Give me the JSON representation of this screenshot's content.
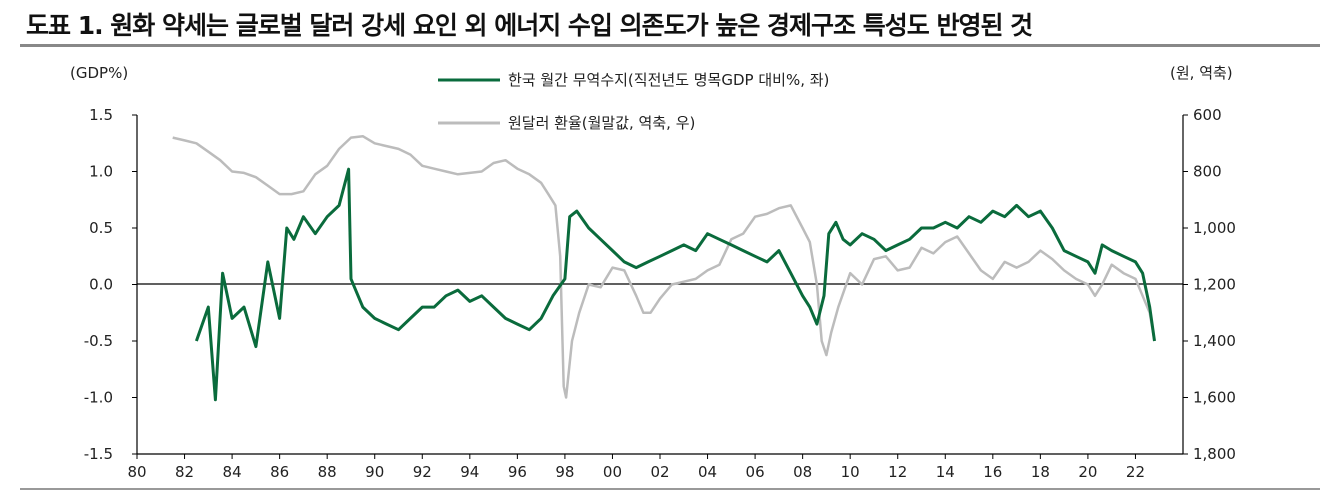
{
  "title": "도표 1. 원화 약세는 글로벌 달러 강세 요인 외 에너지 수입 의존도가 높은 경제구조 특성도 반영된 것",
  "chart_data": {
    "type": "line",
    "left_unit": "(GDP%)",
    "right_unit": "(원, 역축)",
    "left_axis": {
      "min": -1.5,
      "max": 1.5,
      "ticks": [
        "1.5",
        "1.0",
        "0.5",
        "0.0",
        "-0.5",
        "-1.0",
        "-1.5"
      ]
    },
    "right_axis": {
      "min": 600,
      "max": 1800,
      "reversed": true,
      "ticks": [
        "600",
        "800",
        "1,000",
        "1,200",
        "1,400",
        "1,600",
        "1,800"
      ]
    },
    "x_axis": {
      "min": 1980,
      "max": 2024,
      "ticks": [
        "80",
        "82",
        "84",
        "86",
        "88",
        "90",
        "92",
        "94",
        "96",
        "98",
        "00",
        "02",
        "04",
        "06",
        "08",
        "10",
        "12",
        "14",
        "16",
        "18",
        "20",
        "22"
      ]
    },
    "legend": [
      {
        "label": "한국 월간 무역수지(직전년도 명목GDP 대비%, 좌)",
        "color": "#0a6b3c"
      },
      {
        "label": "원달러 환율(월말값, 역축, 우)",
        "color": "#bcbcbc"
      }
    ],
    "series": [
      {
        "name": "한국 월간 무역수지(직전년도 명목GDP 대비%, 좌)",
        "axis": "left",
        "color": "#0a6b3c",
        "x": [
          1982.5,
          1983,
          1983.3,
          1983.6,
          1984,
          1984.5,
          1985,
          1985.5,
          1986,
          1986.3,
          1986.6,
          1987,
          1987.5,
          1988,
          1988.5,
          1988.9,
          1989,
          1989.5,
          1990,
          1990.5,
          1991,
          1991.5,
          1992,
          1992.5,
          1993,
          1993.5,
          1994,
          1994.5,
          1995,
          1995.5,
          1996,
          1996.5,
          1997,
          1997.5,
          1998.0,
          1998.2,
          1998.5,
          1999,
          1999.5,
          2000,
          2000.5,
          2001,
          2001.5,
          2002,
          2002.5,
          2003,
          2003.5,
          2004,
          2004.5,
          2005,
          2005.5,
          2006,
          2006.5,
          2007,
          2007.5,
          2008,
          2008.3,
          2008.6,
          2008.9,
          2009.1,
          2009.4,
          2009.7,
          2010,
          2010.5,
          2011,
          2011.5,
          2012,
          2012.5,
          2013,
          2013.5,
          2014,
          2014.5,
          2015,
          2015.5,
          2016,
          2016.5,
          2017,
          2017.5,
          2018,
          2018.5,
          2019,
          2019.5,
          2020,
          2020.3,
          2020.6,
          2021,
          2021.5,
          2022,
          2022.3,
          2022.6,
          2022.8
        ],
        "values": [
          -0.5,
          -0.2,
          -1.02,
          0.1,
          -0.3,
          -0.2,
          -0.55,
          0.2,
          -0.3,
          0.5,
          0.4,
          0.6,
          0.45,
          0.6,
          0.7,
          1.02,
          0.05,
          -0.2,
          -0.3,
          -0.35,
          -0.4,
          -0.3,
          -0.2,
          -0.2,
          -0.1,
          -0.05,
          -0.15,
          -0.1,
          -0.2,
          -0.3,
          -0.35,
          -0.4,
          -0.3,
          -0.1,
          0.05,
          0.6,
          0.65,
          0.5,
          0.4,
          0.3,
          0.2,
          0.15,
          0.2,
          0.25,
          0.3,
          0.35,
          0.3,
          0.45,
          0.4,
          0.35,
          0.3,
          0.25,
          0.2,
          0.3,
          0.1,
          -0.1,
          -0.2,
          -0.35,
          -0.1,
          0.45,
          0.55,
          0.4,
          0.35,
          0.45,
          0.4,
          0.3,
          0.35,
          0.4,
          0.5,
          0.5,
          0.55,
          0.5,
          0.6,
          0.55,
          0.65,
          0.6,
          0.7,
          0.6,
          0.65,
          0.5,
          0.3,
          0.25,
          0.2,
          0.1,
          0.35,
          0.3,
          0.25,
          0.2,
          0.1,
          -0.2,
          -0.5
        ]
      },
      {
        "name": "원달러 환율(월말값, 역축, 우)",
        "axis": "right",
        "color": "#bcbcbc",
        "x": [
          1981.5,
          1982,
          1982.5,
          1983,
          1983.5,
          1984,
          1984.5,
          1985,
          1985.5,
          1986,
          1986.5,
          1987,
          1987.5,
          1988,
          1988.5,
          1989,
          1989.5,
          1990,
          1990.5,
          1991,
          1991.5,
          1992,
          1992.5,
          1993,
          1993.5,
          1994,
          1994.5,
          1995,
          1995.5,
          1996,
          1996.5,
          1997,
          1997.3,
          1997.6,
          1997.8,
          1997.95,
          1998.05,
          1998.3,
          1998.6,
          1999,
          1999.5,
          2000,
          2000.5,
          2001,
          2001.3,
          2001.6,
          2002,
          2002.5,
          2003,
          2003.5,
          2004,
          2004.5,
          2005,
          2005.5,
          2006,
          2006.5,
          2007,
          2007.5,
          2008,
          2008.3,
          2008.6,
          2008.8,
          2009.0,
          2009.2,
          2009.5,
          2010,
          2010.5,
          2011,
          2011.5,
          2012,
          2012.5,
          2013,
          2013.5,
          2014,
          2014.5,
          2015,
          2015.5,
          2016,
          2016.5,
          2017,
          2017.5,
          2018,
          2018.5,
          2019,
          2019.5,
          2020,
          2020.3,
          2020.6,
          2021,
          2021.5,
          2022,
          2022.3,
          2022.6,
          2022.8
        ],
        "values": [
          680,
          690,
          700,
          730,
          760,
          800,
          805,
          820,
          850,
          880,
          880,
          870,
          810,
          780,
          720,
          680,
          675,
          700,
          710,
          720,
          740,
          780,
          790,
          800,
          810,
          805,
          800,
          770,
          760,
          790,
          810,
          840,
          880,
          920,
          1100,
          1560,
          1600,
          1400,
          1300,
          1200,
          1210,
          1140,
          1150,
          1240,
          1300,
          1300,
          1250,
          1200,
          1190,
          1180,
          1150,
          1130,
          1040,
          1020,
          960,
          950,
          930,
          920,
          1000,
          1050,
          1200,
          1400,
          1450,
          1370,
          1280,
          1160,
          1200,
          1110,
          1100,
          1150,
          1140,
          1070,
          1090,
          1050,
          1030,
          1090,
          1150,
          1180,
          1120,
          1140,
          1120,
          1080,
          1110,
          1150,
          1180,
          1200,
          1240,
          1200,
          1130,
          1160,
          1180,
          1240,
          1300,
          1400
        ]
      }
    ]
  }
}
